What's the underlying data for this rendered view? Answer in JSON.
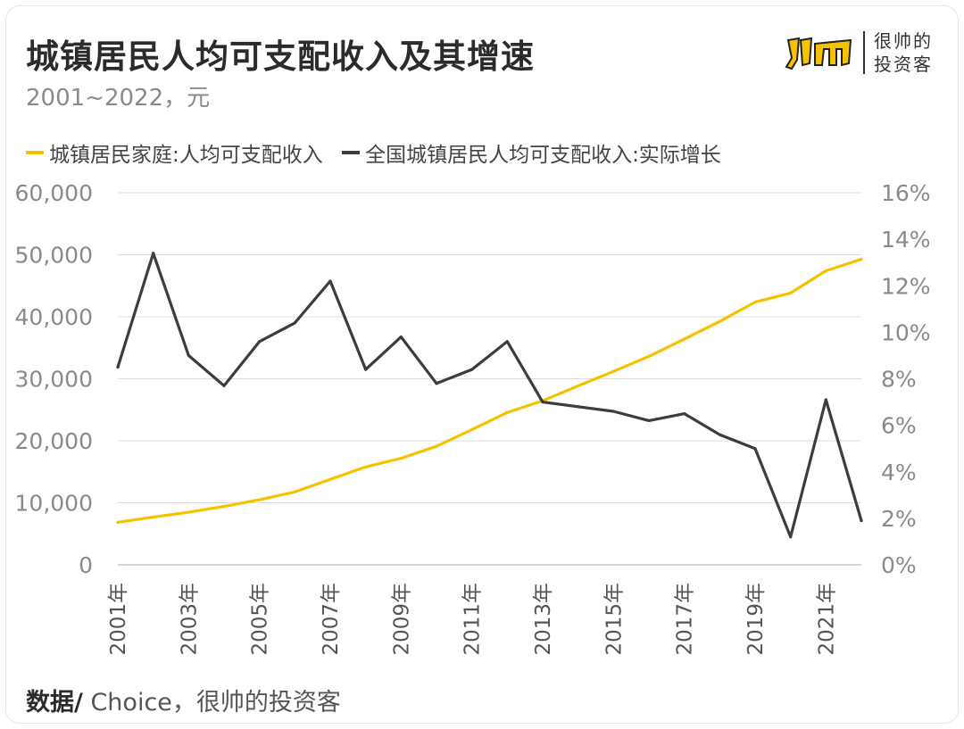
{
  "header": {
    "title": "城镇居民人均可支配收入及其增速",
    "subtitle": "2001~2022，元"
  },
  "brand": {
    "logo_text": "ym",
    "name_line1": "很帅的",
    "name_line2": "投资客",
    "accent": "#f5c400"
  },
  "source": {
    "label": "数据/",
    "text": " Choice，很帅的投资客"
  },
  "chart_data": {
    "type": "line",
    "title": "城镇居民人均可支配收入及其增速",
    "subtitle": "2001~2022，元",
    "x": [
      "2001年",
      "2002年",
      "2003年",
      "2004年",
      "2005年",
      "2006年",
      "2007年",
      "2008年",
      "2009年",
      "2010年",
      "2011年",
      "2012年",
      "2013年",
      "2014年",
      "2015年",
      "2016年",
      "2017年",
      "2018年",
      "2019年",
      "2020年",
      "2021年",
      "2022年"
    ],
    "x_tick_labels": [
      "2001年",
      "2003年",
      "2005年",
      "2007年",
      "2009年",
      "2011年",
      "2013年",
      "2015年",
      "2017年",
      "2019年",
      "2021年"
    ],
    "y_left": {
      "ylim": [
        0,
        60000
      ],
      "ticks": [
        "0",
        "10,000",
        "20,000",
        "30,000",
        "40,000",
        "50,000",
        "60,000"
      ]
    },
    "y_right": {
      "ylim": [
        0,
        16
      ],
      "ticks": [
        "0%",
        "2%",
        "4%",
        "6%",
        "8%",
        "10%",
        "12%",
        "14%",
        "16%"
      ]
    },
    "grid": true,
    "legend_position": "top-left",
    "series": [
      {
        "name": "城镇居民家庭:人均可支配收入",
        "axis": "left",
        "color": "#f5c200",
        "values": [
          6860,
          7703,
          8472,
          9422,
          10493,
          11760,
          13786,
          15781,
          17175,
          19109,
          21810,
          24565,
          26467,
          28844,
          31195,
          33616,
          36396,
          39251,
          42359,
          43834,
          47412,
          49283
        ]
      },
      {
        "name": "全国城镇居民人均可支配收入:实际增长",
        "axis": "right",
        "color": "#3d3d3d",
        "values": [
          8.5,
          13.4,
          9.0,
          7.7,
          9.6,
          10.4,
          12.2,
          8.4,
          9.8,
          7.8,
          8.4,
          9.6,
          7.0,
          6.8,
          6.6,
          6.2,
          6.5,
          5.6,
          5.0,
          1.2,
          7.1,
          1.9
        ]
      }
    ]
  }
}
